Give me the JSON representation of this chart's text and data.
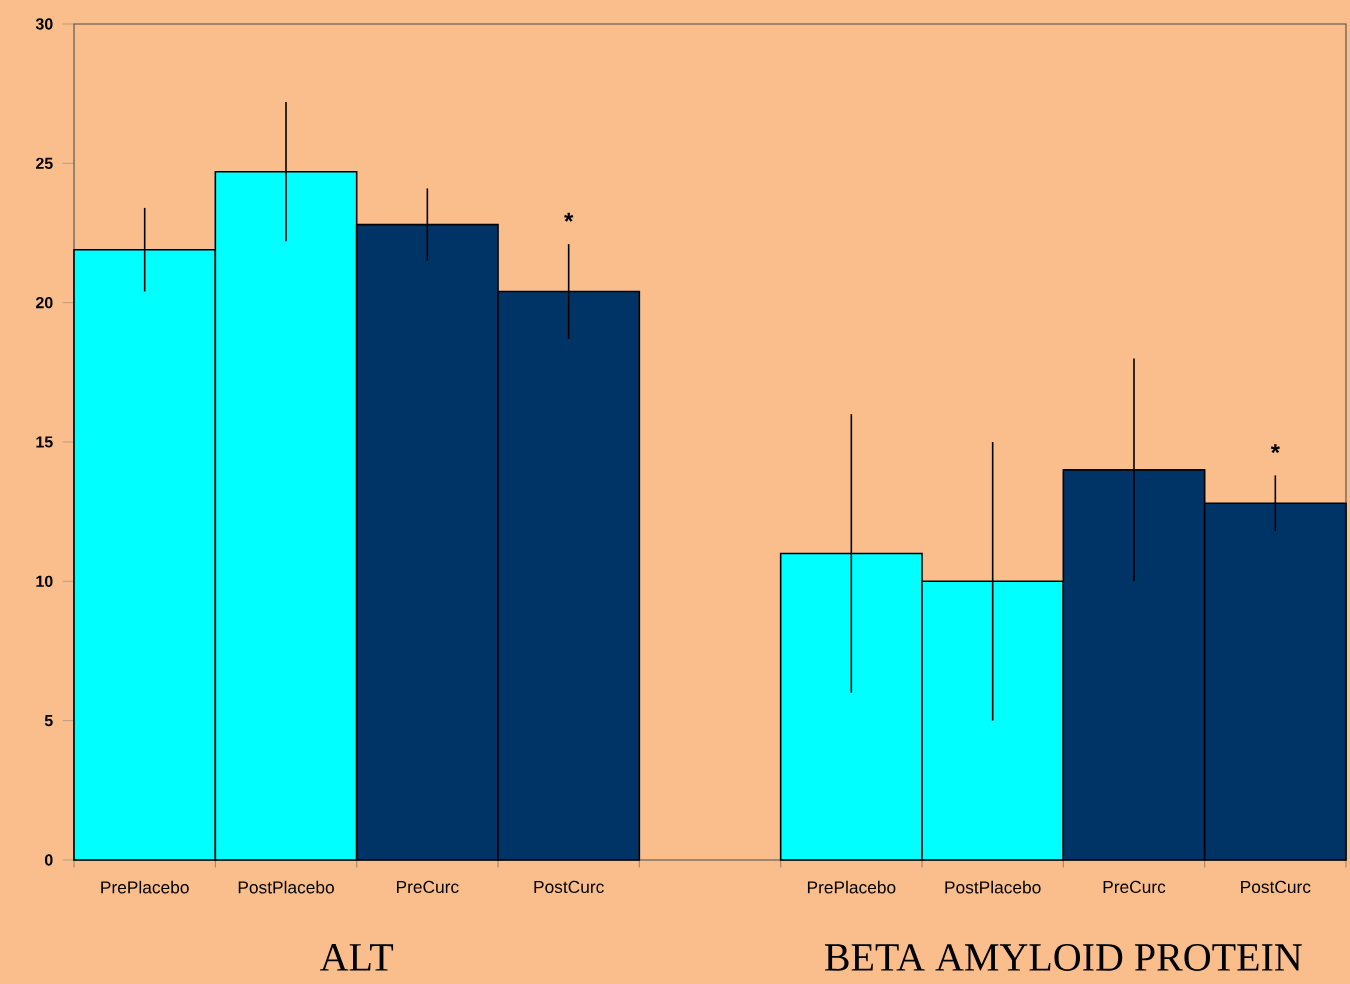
{
  "chart_data": {
    "type": "bar",
    "categories": [
      "PrePlacebo",
      "PostPlacebo",
      "PreCurc",
      "PostCurc",
      null,
      "PrePlacebo",
      "PostPlacebo",
      "PreCurc",
      "PostCurc"
    ],
    "values": [
      21.9,
      24.7,
      22.8,
      20.4,
      null,
      11,
      10,
      14,
      12.8
    ],
    "errors": [
      1.5,
      2.5,
      1.3,
      1.7,
      null,
      5,
      5,
      4,
      1
    ],
    "colors": [
      "#00ffff",
      "#00ffff",
      "#003366",
      "#003366",
      null,
      "#00ffff",
      "#00ffff",
      "#003366",
      "#003366"
    ],
    "value_labels": [
      null,
      null,
      null,
      "*",
      null,
      null,
      null,
      null,
      "*"
    ],
    "ylim": [
      0,
      30
    ],
    "yticks": [
      0,
      5,
      10,
      15,
      20,
      25,
      30
    ],
    "annotations": [
      "ALT",
      "BETA AMYLOID PROTEIN"
    ]
  }
}
